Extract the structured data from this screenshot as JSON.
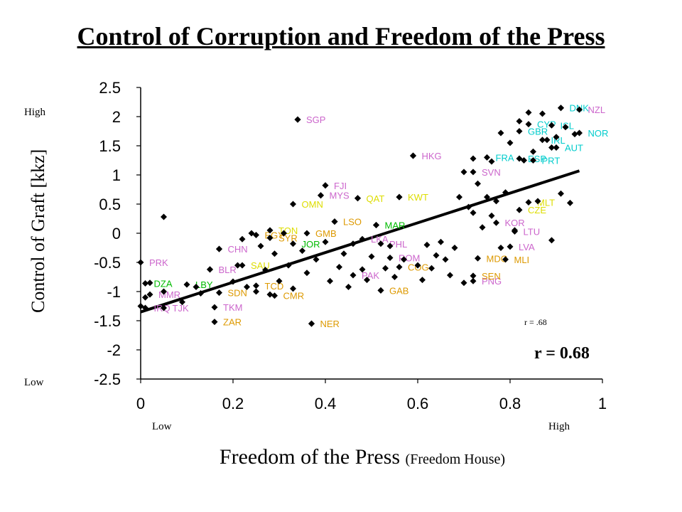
{
  "title": "Control of Corruption and Freedom of the Press",
  "chart_data": {
    "type": "scatter",
    "title": "Control of Corruption and Freedom of the Press",
    "xlabel_main": "Freedom of the Press",
    "xlabel_source": "(Freedom House)",
    "ylabel": "Control of Graft [kkz]",
    "xlim": [
      0,
      1
    ],
    "ylim": [
      -2.5,
      2.5
    ],
    "x_ticks": [
      "0",
      "0.2",
      "0.4",
      "0.6",
      "0.8",
      "1"
    ],
    "y_ticks": [
      "2.5",
      "2",
      "1.5",
      "1",
      "0.5",
      "0",
      "-0.5",
      "-1",
      "-1.5",
      "-2",
      "-2.5"
    ],
    "x_low": "Low",
    "x_high": "High",
    "y_high": "High",
    "y_low": "Low",
    "r_small": "r = .68",
    "r_big": "r = 0.68",
    "trendline": {
      "x": [
        0,
        0.95
      ],
      "y": [
        -1.35,
        1.07
      ]
    },
    "labeled_points": [
      {
        "label": "SGP",
        "x": 0.34,
        "y": 1.95,
        "color": "#cc66cc"
      },
      {
        "label": "HKG",
        "x": 0.59,
        "y": 1.33,
        "color": "#cc66cc"
      },
      {
        "label": "FJI",
        "x": 0.4,
        "y": 0.82,
        "color": "#cc66cc"
      },
      {
        "label": "MYS",
        "x": 0.39,
        "y": 0.65,
        "color": "#cc66cc"
      },
      {
        "label": "QAT",
        "x": 0.47,
        "y": 0.6,
        "color": "#dddd00"
      },
      {
        "label": "KWT",
        "x": 0.56,
        "y": 0.62,
        "color": "#dddd00"
      },
      {
        "label": "OMN",
        "x": 0.33,
        "y": 0.5,
        "color": "#dddd00"
      },
      {
        "label": "LSO",
        "x": 0.42,
        "y": 0.2,
        "color": "#dd9900"
      },
      {
        "label": "MAR",
        "x": 0.51,
        "y": 0.14,
        "color": "#00bb00"
      },
      {
        "label": "TON",
        "x": 0.28,
        "y": 0.05,
        "color": "#dddd00"
      },
      {
        "label": "GMB",
        "x": 0.36,
        "y": 0.0,
        "color": "#dd9900"
      },
      {
        "label": "EGY",
        "x": 0.25,
        "y": -0.03,
        "color": "#dd9900"
      },
      {
        "label": "SYR",
        "x": 0.28,
        "y": -0.08,
        "color": "#dd9900"
      },
      {
        "label": "JOR",
        "x": 0.33,
        "y": -0.18,
        "color": "#00bb00"
      },
      {
        "label": "CHN",
        "x": 0.17,
        "y": -0.27,
        "color": "#cc66cc"
      },
      {
        "label": "LKA",
        "x": 0.48,
        "y": -0.1,
        "color": "#cc66cc"
      },
      {
        "label": "SAU",
        "x": 0.22,
        "y": -0.55,
        "color": "#dddd00"
      },
      {
        "label": "BLR",
        "x": 0.15,
        "y": -0.62,
        "color": "#cc66cc"
      },
      {
        "label": "PHL",
        "x": 0.52,
        "y": -0.18,
        "color": "#cc66cc"
      },
      {
        "label": "ROM",
        "x": 0.54,
        "y": -0.42,
        "color": "#cc66cc"
      },
      {
        "label": "COG",
        "x": 0.56,
        "y": -0.58,
        "color": "#dd9900"
      },
      {
        "label": "PAK",
        "x": 0.46,
        "y": -0.72,
        "color": "#cc66cc"
      },
      {
        "label": "MLI",
        "x": 0.79,
        "y": -0.45,
        "color": "#dd9900"
      },
      {
        "label": "LVA",
        "x": 0.8,
        "y": -0.23,
        "color": "#cc66cc"
      },
      {
        "label": "LTU",
        "x": 0.81,
        "y": 0.03,
        "color": "#cc66cc"
      },
      {
        "label": "KOR",
        "x": 0.77,
        "y": 0.18,
        "color": "#cc66cc"
      },
      {
        "label": "CZE",
        "x": 0.82,
        "y": 0.4,
        "color": "#dddd00"
      },
      {
        "label": "MLT",
        "x": 0.84,
        "y": 0.53,
        "color": "#dddd00"
      },
      {
        "label": "SVN",
        "x": 0.72,
        "y": 1.05,
        "color": "#cc66cc"
      },
      {
        "label": "FRA",
        "x": 0.75,
        "y": 1.3,
        "color": "#00cccc"
      },
      {
        "label": "PRT",
        "x": 0.85,
        "y": 1.25,
        "color": "#00cccc"
      },
      {
        "label": "ESP",
        "x": 0.82,
        "y": 1.28,
        "color": "#00cccc"
      },
      {
        "label": "IRL",
        "x": 0.87,
        "y": 1.6,
        "color": "#00cccc"
      },
      {
        "label": "GBR",
        "x": 0.82,
        "y": 1.75,
        "color": "#00cccc"
      },
      {
        "label": "CYP",
        "x": 0.84,
        "y": 1.87,
        "color": "#00cccc"
      },
      {
        "label": "ISL",
        "x": 0.89,
        "y": 1.85,
        "color": "#00cccc"
      },
      {
        "label": "AUT",
        "x": 0.9,
        "y": 1.47,
        "color": "#00cccc"
      },
      {
        "label": "NOR",
        "x": 0.95,
        "y": 1.72,
        "color": "#00cccc"
      },
      {
        "label": "DNK",
        "x": 0.91,
        "y": 2.15,
        "color": "#00cccc"
      },
      {
        "label": "NZL",
        "x": 0.95,
        "y": 2.12,
        "color": "#cc66cc"
      },
      {
        "label": "PRK",
        "x": 0.0,
        "y": -0.5,
        "color": "#cc66cc"
      },
      {
        "label": "DZA",
        "x": 0.01,
        "y": -0.86,
        "color": "#00bb00"
      },
      {
        "label": "LBY",
        "x": 0.1,
        "y": -0.88,
        "color": "#00bb00"
      },
      {
        "label": "MMR",
        "x": 0.02,
        "y": -1.05,
        "color": "#cc66cc"
      },
      {
        "label": "TJK",
        "x": 0.05,
        "y": -1.28,
        "color": "#cc66cc"
      },
      {
        "label": "IRQ",
        "x": 0.01,
        "y": -1.28,
        "color": "#cc66cc"
      },
      {
        "label": "TKM",
        "x": 0.16,
        "y": -1.27,
        "color": "#cc66cc"
      },
      {
        "label": "ZAR",
        "x": 0.16,
        "y": -1.52,
        "color": "#dd9900"
      },
      {
        "label": "NER",
        "x": 0.37,
        "y": -1.55,
        "color": "#dd9900"
      },
      {
        "label": "SDN",
        "x": 0.17,
        "y": -1.02,
        "color": "#dd9900"
      },
      {
        "label": "TCD",
        "x": 0.25,
        "y": -0.9,
        "color": "#dd9900"
      },
      {
        "label": "CMR",
        "x": 0.29,
        "y": -1.07,
        "color": "#dd9900"
      },
      {
        "label": "GAB",
        "x": 0.52,
        "y": -0.98,
        "color": "#dd9900"
      },
      {
        "label": "PNG",
        "x": 0.72,
        "y": -0.82,
        "color": "#cc66cc"
      },
      {
        "label": "SEN",
        "x": 0.72,
        "y": -0.73,
        "color": "#dd9900"
      },
      {
        "label": "MDG",
        "x": 0.73,
        "y": -0.43,
        "color": "#dd9900"
      }
    ],
    "unlabeled_points": [
      {
        "x": 0.0,
        "y": -1.25
      },
      {
        "x": 0.01,
        "y": -1.1
      },
      {
        "x": 0.02,
        "y": -0.85
      },
      {
        "x": 0.05,
        "y": 0.28
      },
      {
        "x": 0.05,
        "y": -1.0
      },
      {
        "x": 0.09,
        "y": -1.18
      },
      {
        "x": 0.12,
        "y": -0.92
      },
      {
        "x": 0.13,
        "y": -1.03
      },
      {
        "x": 0.15,
        "y": -0.62
      },
      {
        "x": 0.17,
        "y": -0.27
      },
      {
        "x": 0.2,
        "y": -0.83
      },
      {
        "x": 0.21,
        "y": -0.55
      },
      {
        "x": 0.22,
        "y": -0.1
      },
      {
        "x": 0.23,
        "y": -0.92
      },
      {
        "x": 0.24,
        "y": 0.0
      },
      {
        "x": 0.25,
        "y": -1.0
      },
      {
        "x": 0.26,
        "y": -0.22
      },
      {
        "x": 0.27,
        "y": -0.63
      },
      {
        "x": 0.28,
        "y": -1.05
      },
      {
        "x": 0.29,
        "y": -0.35
      },
      {
        "x": 0.3,
        "y": -0.82
      },
      {
        "x": 0.31,
        "y": 0.0
      },
      {
        "x": 0.32,
        "y": -0.55
      },
      {
        "x": 0.33,
        "y": -0.95
      },
      {
        "x": 0.34,
        "y": 1.95
      },
      {
        "x": 0.35,
        "y": -0.3
      },
      {
        "x": 0.36,
        "y": -0.68
      },
      {
        "x": 0.37,
        "y": -1.55
      },
      {
        "x": 0.38,
        "y": -0.45
      },
      {
        "x": 0.39,
        "y": 0.65
      },
      {
        "x": 0.4,
        "y": 0.82
      },
      {
        "x": 0.4,
        "y": -0.15
      },
      {
        "x": 0.41,
        "y": -0.82
      },
      {
        "x": 0.42,
        "y": 0.2
      },
      {
        "x": 0.43,
        "y": -0.58
      },
      {
        "x": 0.44,
        "y": -0.35
      },
      {
        "x": 0.45,
        "y": -0.92
      },
      {
        "x": 0.46,
        "y": -0.18
      },
      {
        "x": 0.47,
        "y": 0.6
      },
      {
        "x": 0.48,
        "y": -0.62
      },
      {
        "x": 0.49,
        "y": -0.8
      },
      {
        "x": 0.5,
        "y": -0.4
      },
      {
        "x": 0.51,
        "y": 0.14
      },
      {
        "x": 0.52,
        "y": -0.98
      },
      {
        "x": 0.53,
        "y": -0.6
      },
      {
        "x": 0.54,
        "y": -0.22
      },
      {
        "x": 0.55,
        "y": -0.75
      },
      {
        "x": 0.56,
        "y": 0.62
      },
      {
        "x": 0.57,
        "y": -0.45
      },
      {
        "x": 0.59,
        "y": 1.33
      },
      {
        "x": 0.6,
        "y": -0.55
      },
      {
        "x": 0.61,
        "y": -0.8
      },
      {
        "x": 0.62,
        "y": -0.2
      },
      {
        "x": 0.63,
        "y": -0.6
      },
      {
        "x": 0.64,
        "y": -0.38
      },
      {
        "x": 0.65,
        "y": -0.15
      },
      {
        "x": 0.66,
        "y": -0.45
      },
      {
        "x": 0.67,
        "y": -0.72
      },
      {
        "x": 0.68,
        "y": -0.25
      },
      {
        "x": 0.69,
        "y": 0.62
      },
      {
        "x": 0.7,
        "y": 1.05
      },
      {
        "x": 0.7,
        "y": -0.85
      },
      {
        "x": 0.71,
        "y": 0.45
      },
      {
        "x": 0.72,
        "y": 1.28
      },
      {
        "x": 0.72,
        "y": 0.35
      },
      {
        "x": 0.73,
        "y": 0.85
      },
      {
        "x": 0.74,
        "y": 0.1
      },
      {
        "x": 0.75,
        "y": 0.62
      },
      {
        "x": 0.76,
        "y": 1.23
      },
      {
        "x": 0.76,
        "y": 0.3
      },
      {
        "x": 0.77,
        "y": 0.55
      },
      {
        "x": 0.78,
        "y": 1.72
      },
      {
        "x": 0.78,
        "y": -0.25
      },
      {
        "x": 0.79,
        "y": 0.7
      },
      {
        "x": 0.8,
        "y": 1.55
      },
      {
        "x": 0.81,
        "y": 0.05
      },
      {
        "x": 0.82,
        "y": 1.92
      },
      {
        "x": 0.83,
        "y": 1.25
      },
      {
        "x": 0.84,
        "y": 2.07
      },
      {
        "x": 0.85,
        "y": 1.4
      },
      {
        "x": 0.86,
        "y": 0.55
      },
      {
        "x": 0.87,
        "y": 2.05
      },
      {
        "x": 0.88,
        "y": 1.6
      },
      {
        "x": 0.89,
        "y": 1.47
      },
      {
        "x": 0.89,
        "y": -0.12
      },
      {
        "x": 0.9,
        "y": 1.65
      },
      {
        "x": 0.91,
        "y": 2.15
      },
      {
        "x": 0.91,
        "y": 0.68
      },
      {
        "x": 0.92,
        "y": 1.82
      },
      {
        "x": 0.93,
        "y": 0.52
      },
      {
        "x": 0.94,
        "y": 1.7
      }
    ]
  }
}
